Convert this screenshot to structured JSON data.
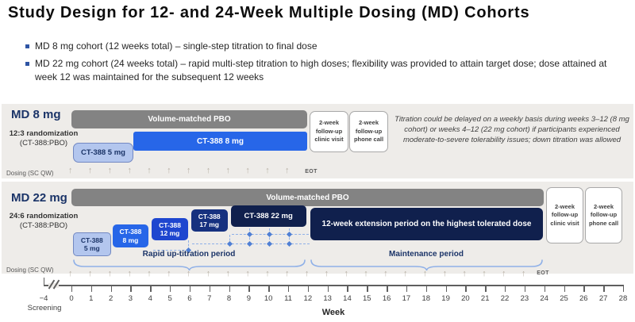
{
  "title": "Study Design for 12- and 24-Week Multiple Dosing (MD) Cohorts",
  "bullets": [
    "MD 8 mg cohort (12 weeks total) – single-step titration to final dose",
    "MD 22 mg cohort (24 weeks total) – rapid multi-step titration to high doses; flexibility was provided to attain target dose; dose attained at week 12 was maintained for the subsequent 12 weeks"
  ],
  "note": "Titration could be delayed on a weekly basis during weeks 3–12 (8 mg cohort) or weeks 4–12 (22 mg cohort) if participants experienced moderate-to-severe tolerability issues; down titration was allowed",
  "followup": {
    "clinic": [
      "2-week",
      "follow-up",
      "clinic visit"
    ],
    "phone": [
      "2-week",
      "follow-up",
      "phone call"
    ]
  },
  "cohort_8mg": {
    "name": "MD 8 mg",
    "randomization": "12:3 randomization",
    "ratio": "(CT-388:PBO)",
    "pbo_label": "Volume-matched PBO",
    "dose_5_label": "CT-388 5 mg",
    "dose_8_label": "CT-388 8 mg",
    "dosing_label": "Dosing (SC QW)",
    "eot_label": "EOT",
    "dosing_weeks": {
      "from": 0,
      "to": 11
    }
  },
  "cohort_22mg": {
    "name": "MD 22 mg",
    "randomization": "24:6 randomization",
    "ratio": "(CT-388:PBO)",
    "pbo_label": "Volume-matched PBO",
    "steps": [
      {
        "lines": [
          "CT-388",
          "5 mg"
        ],
        "weeks": [
          0,
          2
        ]
      },
      {
        "lines": [
          "CT-388",
          "8 mg"
        ],
        "weeks": [
          2,
          4
        ]
      },
      {
        "lines": [
          "CT-388",
          "12 mg"
        ],
        "weeks": [
          4,
          6
        ]
      },
      {
        "lines": [
          "CT-388",
          "17 mg"
        ],
        "weeks": [
          6,
          8
        ]
      },
      {
        "lines": [
          "CT-388 22 mg"
        ],
        "weeks": [
          8,
          12
        ]
      }
    ],
    "extension_label": "12-week extension period on the highest tolerated dose",
    "uptitration_period_label": "Rapid up-titration period",
    "maintenance_period_label": "Maintenance period",
    "dosing_label": "Dosing (SC QW)",
    "eot_label": "EOT",
    "dosing_weeks": {
      "from": 0,
      "to": 23
    }
  },
  "axis": {
    "ticks": [
      "−4",
      "0",
      "1",
      "2",
      "3",
      "4",
      "5",
      "6",
      "7",
      "8",
      "9",
      "10",
      "11",
      "12",
      "14",
      "15",
      "16",
      "13",
      "17",
      "18",
      "19",
      "20",
      "21",
      "22",
      "23",
      "24",
      "25",
      "26",
      "27",
      "28"
    ],
    "tick_order": [
      "−4",
      "0",
      "1",
      "2",
      "3",
      "4",
      "5",
      "6",
      "7",
      "8",
      "9",
      "10",
      "11",
      "12",
      "13",
      "14",
      "15",
      "16",
      "17",
      "18",
      "19",
      "20",
      "21",
      "22",
      "23",
      "24",
      "25",
      "26",
      "27",
      "28"
    ],
    "screening_label": "Screening",
    "week_label": "Week"
  },
  "colors": {
    "band_bg": "#eeece9",
    "pbo_gray": "#838383",
    "blue_8mg": "#2766e8",
    "blue_12mg": "#1e46cf",
    "blue_17mg": "#16317f",
    "navy_22mg": "#10204d",
    "light_blue_5mg": "#b3c6ee",
    "dash_blue": "#8fb0e8",
    "diamond_blue": "#4f7fd4",
    "navy_text": "#1b3468"
  }
}
